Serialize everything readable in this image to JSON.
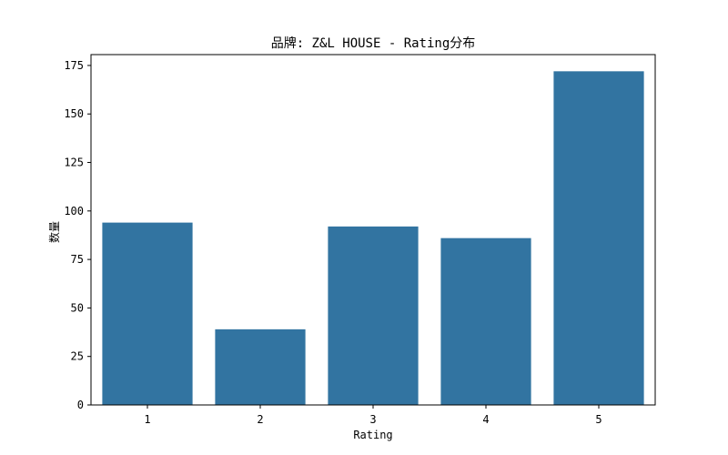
{
  "chart_data": {
    "type": "bar",
    "title": "品牌: Z&L HOUSE - Rating分布",
    "xlabel": "Rating",
    "ylabel": "数量",
    "categories": [
      "1",
      "2",
      "3",
      "4",
      "5"
    ],
    "values": [
      94,
      39,
      92,
      86,
      172
    ],
    "ylim": [
      0,
      180.6
    ],
    "yticks": [
      "0",
      "25",
      "50",
      "75",
      "100",
      "125",
      "150",
      "175"
    ],
    "bar_color": "#3274a1",
    "grid": false,
    "legend": "none"
  }
}
